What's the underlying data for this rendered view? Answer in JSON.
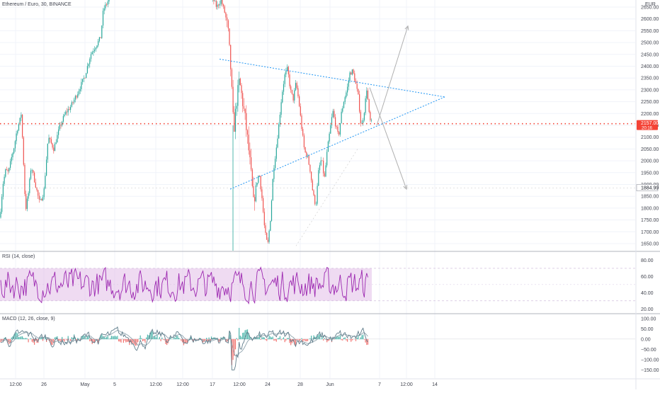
{
  "header": {
    "symbol_title": "Ethereum / Euro, 30, BINANCE",
    "currency": "EUR"
  },
  "colors": {
    "up": "#26a69a",
    "down": "#ef5350",
    "rsi_line": "#9c27b0",
    "rsi_band": "#e1bee7",
    "macd_line": "#607d8b",
    "signal_line": "#90a4ae",
    "trendline": "#2196f3",
    "hline": "#f44336",
    "projection": "#b0b0b0",
    "axis_text": "#434651",
    "grid": "#f0f3fa"
  },
  "chart_data": [
    {
      "type": "candlestick",
      "title": "Ethereum / Euro, 30, BINANCE",
      "ylim": [
        1620,
        2680
      ],
      "y_ticks": [
        2650,
        2600,
        2550,
        2500,
        2450,
        2400,
        2350,
        2300,
        2250,
        2200,
        2150,
        2100,
        2050,
        2000,
        1950,
        1900,
        1850,
        1800,
        1750,
        1700,
        1650
      ],
      "y_tick_labels": [
        "2650.00",
        "2600.00",
        "2550.00",
        "2500.00",
        "2450.00",
        "2400.00",
        "2350.00",
        "2300.00",
        "2250.00",
        "2200.00",
        "2150.00",
        "2100.00",
        "2050.00",
        "2000.00",
        "1950.00",
        "1900.00",
        "1850.00",
        "1800.00",
        "1750.00",
        "1700.00",
        "1650.00"
      ],
      "x_tick_labels": [
        "12:00",
        "26",
        "May",
        "5",
        "12:00",
        "12:00",
        "17",
        "12:00",
        "24",
        "28",
        "Jun",
        "7",
        "12:00",
        "14"
      ],
      "price_path": [
        [
          0,
          1760
        ],
        [
          4,
          1900
        ],
        [
          8,
          1960
        ],
        [
          12,
          1950
        ],
        [
          16,
          2010
        ],
        [
          20,
          2060
        ],
        [
          24,
          2130
        ],
        [
          28,
          2170
        ],
        [
          30,
          2200
        ],
        [
          33,
          2010
        ],
        [
          36,
          1790
        ],
        [
          40,
          1860
        ],
        [
          44,
          1980
        ],
        [
          50,
          1900
        ],
        [
          56,
          1820
        ],
        [
          62,
          1870
        ],
        [
          68,
          2100
        ],
        [
          76,
          2050
        ],
        [
          84,
          2140
        ],
        [
          92,
          2200
        ],
        [
          100,
          2230
        ],
        [
          110,
          2290
        ],
        [
          120,
          2360
        ],
        [
          128,
          2450
        ],
        [
          136,
          2490
        ],
        [
          142,
          2520
        ],
        [
          146,
          2640
        ],
        [
          150,
          2660
        ],
        [
          155,
          2690
        ],
        [
          300,
          2690
        ],
        [
          306,
          2650
        ],
        [
          312,
          2680
        ],
        [
          318,
          2620
        ],
        [
          322,
          2550
        ],
        [
          326,
          2380
        ],
        [
          330,
          2120
        ],
        [
          334,
          2250
        ],
        [
          338,
          2340
        ],
        [
          342,
          2260
        ],
        [
          346,
          2180
        ],
        [
          350,
          2080
        ],
        [
          354,
          1960
        ],
        [
          358,
          1820
        ],
        [
          362,
          1900
        ],
        [
          366,
          1950
        ],
        [
          370,
          1840
        ],
        [
          374,
          1700
        ],
        [
          378,
          1640
        ],
        [
          382,
          1760
        ],
        [
          386,
          1960
        ],
        [
          390,
          2050
        ],
        [
          394,
          2160
        ],
        [
          398,
          2280
        ],
        [
          402,
          2360
        ],
        [
          406,
          2390
        ],
        [
          410,
          2300
        ],
        [
          414,
          2260
        ],
        [
          418,
          2330
        ],
        [
          422,
          2250
        ],
        [
          426,
          2140
        ],
        [
          430,
          2040
        ],
        [
          434,
          2020
        ],
        [
          438,
          1960
        ],
        [
          442,
          1860
        ],
        [
          446,
          1810
        ],
        [
          450,
          1960
        ],
        [
          454,
          2010
        ],
        [
          458,
          1920
        ],
        [
          462,
          2040
        ],
        [
          466,
          2130
        ],
        [
          470,
          2210
        ],
        [
          474,
          2150
        ],
        [
          478,
          2100
        ],
        [
          482,
          2200
        ],
        [
          486,
          2260
        ],
        [
          490,
          2300
        ],
        [
          494,
          2370
        ],
        [
          498,
          2380
        ],
        [
          502,
          2330
        ],
        [
          506,
          2270
        ],
        [
          510,
          2140
        ],
        [
          514,
          2200
        ],
        [
          518,
          2310
        ],
        [
          522,
          2170
        ],
        [
          526,
          2157
        ]
      ],
      "horizontal_lines": [
        {
          "price": 2157.0
        }
      ],
      "price_labels": [
        {
          "text": "2157.00",
          "sub": "20:16",
          "price": 2157.0
        },
        {
          "text": "1884.99",
          "price": 1884.99
        }
      ],
      "trendlines": [
        {
          "kind": "triangle-upper",
          "from": [
            310,
            2430
          ],
          "to": [
            628,
            2270
          ]
        },
        {
          "kind": "triangle-lower",
          "from": [
            325,
            1880
          ],
          "to": [
            628,
            2270
          ]
        }
      ],
      "projections": [
        {
          "kind": "up-target",
          "from": [
            532,
            2150
          ],
          "to": [
            576,
            2570
          ]
        },
        {
          "kind": "down-target",
          "from": [
            522,
            2310
          ],
          "to": [
            574,
            1880
          ]
        }
      ]
    },
    {
      "type": "line",
      "title": "RSI (14, close)",
      "ylim": [
        15,
        90
      ],
      "y_ticks": [
        80,
        60,
        40,
        20
      ],
      "y_tick_labels": [
        "80.00",
        "60.00",
        "40.00",
        "20.00"
      ],
      "band": [
        30,
        70
      ]
    },
    {
      "type": "bar",
      "title": "MACD (12, 26, close, 9)",
      "ylim": [
        -190,
        120
      ],
      "y_ticks": [
        100,
        50,
        0,
        -50,
        -100,
        -150
      ],
      "y_tick_labels": [
        "100.00",
        "50.00",
        "0.00",
        "−50.00",
        "−100.00",
        "−150.00"
      ]
    }
  ]
}
